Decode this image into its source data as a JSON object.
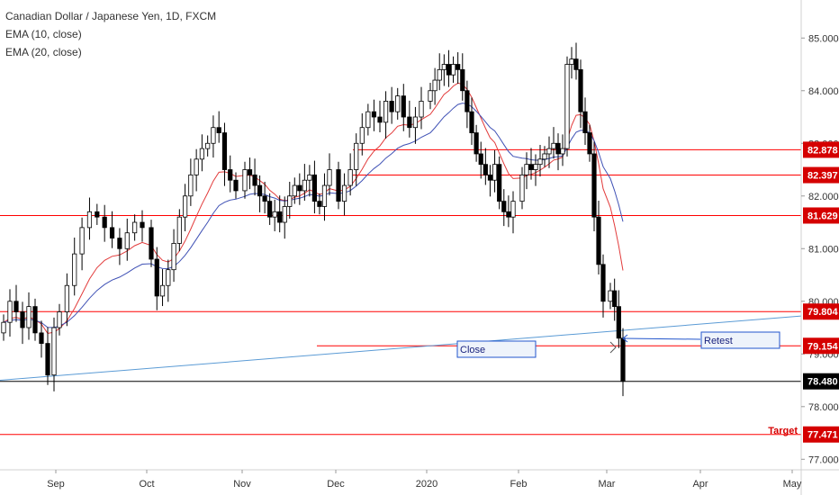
{
  "title": "Canadian Dollar / Japanese Yen, 1D, FXCM",
  "indicators": [
    "EMA (10, close)",
    "EMA (20, close)"
  ],
  "colors": {
    "up": "#ffffff",
    "down": "#000000",
    "wick": "#000000",
    "ema10": "#e23b3b",
    "ema20": "#3f51b5",
    "level_line": "#ff0000",
    "level_box_bg": "#d50000",
    "trendline": "#5b9bd5",
    "current_price_box": "#000000",
    "axis_text": "#333333"
  },
  "chart_data": {
    "type": "candlestick",
    "title": "Canadian Dollar / Japanese Yen, 1D, FXCM",
    "x_ticks": [
      "Sep",
      "Oct",
      "Nov",
      "Dec",
      "2020",
      "Feb",
      "Mar",
      "Apr",
      "May"
    ],
    "y_ticks": [
      "85.000",
      "84.000",
      "83.000",
      "82.000",
      "81.000",
      "80.000",
      "79.000",
      "78.000",
      "77.000"
    ],
    "y_range": [
      76.8,
      85.5
    ],
    "levels": [
      {
        "price": 82.878,
        "label": "82.878"
      },
      {
        "price": 82.397,
        "label": "82.397"
      },
      {
        "price": 81.629,
        "label": "81.629"
      },
      {
        "price": 79.804,
        "label": "79.804"
      },
      {
        "price": 79.154,
        "label": "79.154"
      },
      {
        "price": 77.471,
        "label": "77.471"
      }
    ],
    "current_price": {
      "price": 78.48,
      "label": "78.480"
    },
    "annotations": {
      "close": "Close",
      "retest": "Retest",
      "target": "Target"
    },
    "closes_sampled_by_month": {
      "Aug_end": [
        79.6,
        80.0,
        79.8,
        79.5,
        79.9,
        79.4,
        79.2,
        78.6,
        79.5
      ],
      "Sep": [
        79.8,
        80.3,
        80.9,
        81.4,
        81.7,
        81.6,
        81.4,
        81.2,
        81.0,
        81.3,
        81.5,
        81.4
      ],
      "Oct": [
        80.8,
        80.1,
        80.3,
        80.6,
        81.1,
        81.6,
        82.0,
        82.4,
        82.7,
        82.9,
        83.0,
        83.3,
        83.2,
        82.5,
        82.3,
        82.1
      ],
      "Nov": [
        82.5,
        82.4,
        82.2,
        82.0,
        81.9,
        81.6,
        81.7,
        81.5,
        81.8,
        82.0,
        82.2,
        82.1,
        82.3,
        82.4,
        81.9,
        81.8,
        82.2,
        82.5
      ],
      "Dec": [
        81.9,
        82.2,
        82.5,
        83.0,
        83.3,
        83.6,
        83.5,
        83.4,
        83.8,
        83.6,
        83.9,
        83.5,
        83.3,
        83.5,
        83.8
      ],
      "Jan": [
        84.0,
        84.2,
        84.4,
        84.5,
        84.3,
        84.5,
        84.4,
        84.0,
        83.6,
        83.2,
        82.8,
        82.6,
        82.4,
        82.3,
        82.6,
        81.9,
        81.7,
        81.6,
        81.9
      ],
      "Feb": [
        82.4,
        82.6,
        82.5,
        82.6,
        82.7,
        82.8,
        82.9,
        83.0,
        82.8,
        82.9,
        84.5,
        84.6,
        84.4,
        83.6,
        83.2,
        82.8,
        81.6,
        80.7,
        80.0
      ],
      "Mar": [
        80.2,
        79.9,
        79.3,
        78.48
      ]
    }
  }
}
